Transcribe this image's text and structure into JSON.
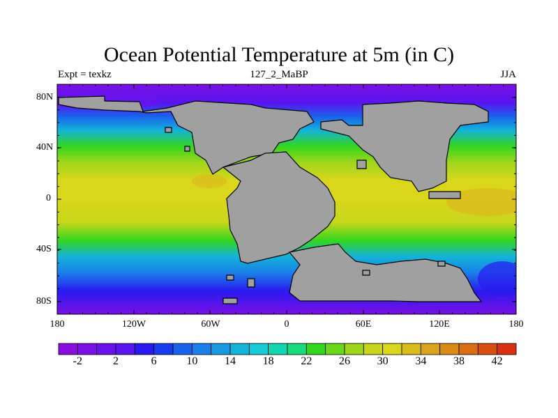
{
  "title": "Ocean Potential Temperature at 5m (in C)",
  "left_string": "Expt = texkz",
  "center_string": "127_2_MaBP",
  "right_string": "JJA",
  "y_ticks": [
    "80N",
    "40N",
    "0",
    "40S",
    "80S"
  ],
  "x_ticks": [
    "180",
    "120W",
    "60W",
    "0",
    "60E",
    "120E",
    "180"
  ],
  "colorbar": {
    "labels": [
      "-2",
      "2",
      "6",
      "10",
      "14",
      "18",
      "22",
      "26",
      "30",
      "34",
      "38",
      "42"
    ],
    "colors": [
      "#8a0ddf",
      "#7a10e6",
      "#6a12ec",
      "#5a14ef",
      "#2a1af0",
      "#1a3cef",
      "#1a62ec",
      "#1a7fe8",
      "#1a99e2",
      "#13b3da",
      "#16cbd6",
      "#13d6b0",
      "#17dc7e",
      "#33d61f",
      "#6ad81b",
      "#9fd61b",
      "#c8d61b",
      "#dad61b",
      "#dabc1b",
      "#d9a31b",
      "#d98a17",
      "#d86d13",
      "#d7500f",
      "#d83010"
    ]
  },
  "land_color": "#a0a0a0"
}
